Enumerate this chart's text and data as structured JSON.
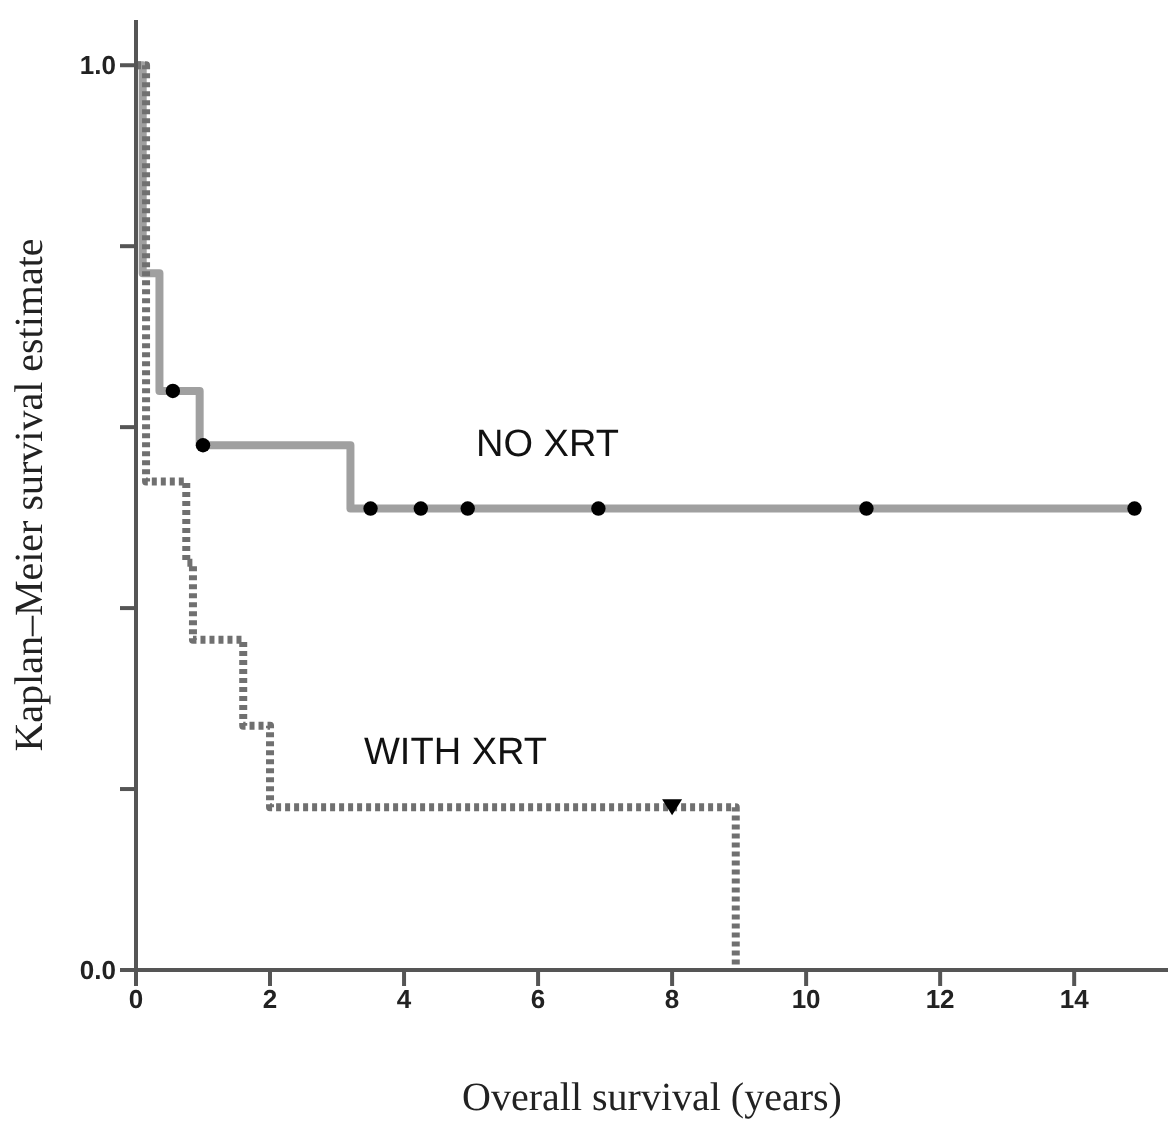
{
  "chart_data": {
    "type": "step",
    "xlabel": "Overall survival (years)",
    "ylabel": "Kaplan–Meier survival estimate",
    "xlim": [
      0,
      15.4
    ],
    "xticks": [
      0,
      2,
      4,
      6,
      8,
      10,
      12,
      14
    ],
    "ylim": [
      0,
      1.05
    ],
    "yticks": [
      {
        "value": 0,
        "label": "0.0"
      },
      {
        "value": 0.2,
        "label": null
      },
      {
        "value": 0.4,
        "label": null
      },
      {
        "value": 0.6,
        "label": null
      },
      {
        "value": 0.8,
        "label": null
      },
      {
        "value": 1,
        "label": "1.0"
      }
    ],
    "grid": false,
    "legend": false,
    "series": [
      {
        "name": "NO XRT",
        "color": "#a0a0a0",
        "line_style": "solid",
        "marker": "none",
        "x": [
          0,
          0.1,
          0.35,
          0.95,
          3.2,
          14.9
        ],
        "values": [
          1,
          0.77,
          0.64,
          0.58,
          0.51,
          0.51
        ]
      },
      {
        "name": "WITH XRT",
        "color": "#707070",
        "line_style": "dotted",
        "marker": "none",
        "x": [
          0,
          0.15,
          0.75,
          0.85,
          1.6,
          2.0,
          8.95
        ],
        "values": [
          1,
          0.54,
          0.45,
          0.365,
          0.27,
          0.18,
          0
        ]
      },
      {
        "type": "scatter",
        "color": "#000000",
        "marker": "circle",
        "x": [
          0.55,
          1.0,
          3.5,
          4.25,
          4.95,
          6.9,
          10.9,
          14.9
        ],
        "values": [
          0.64,
          0.58,
          0.51,
          0.51,
          0.51,
          0.51,
          0.51,
          0.51
        ]
      },
      {
        "type": "scatter",
        "color": "#000000",
        "marker": "triangle",
        "x": [
          8.0
        ],
        "values": [
          0.18
        ]
      }
    ]
  }
}
